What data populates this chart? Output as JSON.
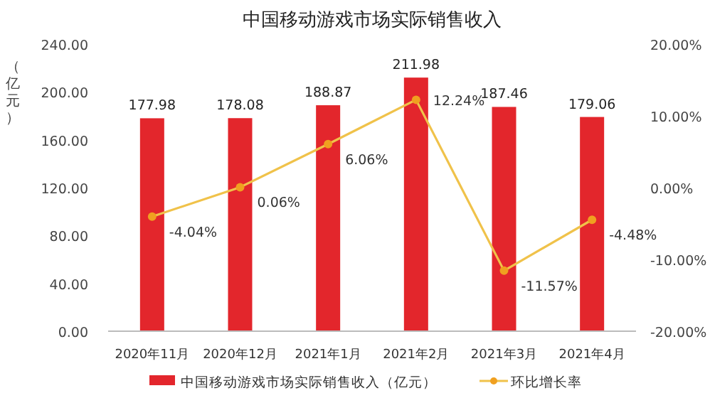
{
  "chart_data": {
    "type": "bar",
    "title": "中国移动游戏市场实际销售收入",
    "ylabel": "（亿元）",
    "categories": [
      "2020年11月",
      "2020年12月",
      "2021年1月",
      "2021年2月",
      "2021年3月",
      "2021年4月"
    ],
    "series": [
      {
        "name": "中国移动游戏市场实际销售收入（亿元）",
        "color": "#e3262c",
        "values": [
          177.98,
          178.08,
          188.87,
          211.98,
          187.46,
          179.06
        ],
        "value_labels": [
          "177.98",
          "178.08",
          "188.87",
          "211.98",
          "187.46",
          "179.06"
        ]
      },
      {
        "name": "环比增长率",
        "type": "line",
        "axis": "y2",
        "color": "#f0c24a",
        "marker": "circle",
        "values": [
          -4.04,
          0.06,
          6.06,
          12.24,
          -11.57,
          -4.48
        ],
        "value_labels": [
          "-4.04%",
          "0.06%",
          "6.06%",
          "12.24%",
          "-11.57%",
          "-4.48%"
        ]
      }
    ],
    "ylim": [
      0,
      240
    ],
    "yticks": [
      {
        "value": 0,
        "label": "0.00"
      },
      {
        "value": 40,
        "label": "40.00"
      },
      {
        "value": 80,
        "label": "80.00"
      },
      {
        "value": 120,
        "label": "120.00"
      },
      {
        "value": 160,
        "label": "160.00"
      },
      {
        "value": 200,
        "label": "200.00"
      },
      {
        "value": 240,
        "label": "240.00"
      }
    ],
    "y2lim": [
      -20,
      20
    ],
    "y2ticks": [
      {
        "value": -20,
        "label": "-20.00%"
      },
      {
        "value": -10,
        "label": "-10.00%"
      },
      {
        "value": 0,
        "label": "0.00%"
      },
      {
        "value": 10,
        "label": "10.00%"
      },
      {
        "value": 20,
        "label": "20.00%"
      }
    ],
    "legend": "bottom"
  }
}
